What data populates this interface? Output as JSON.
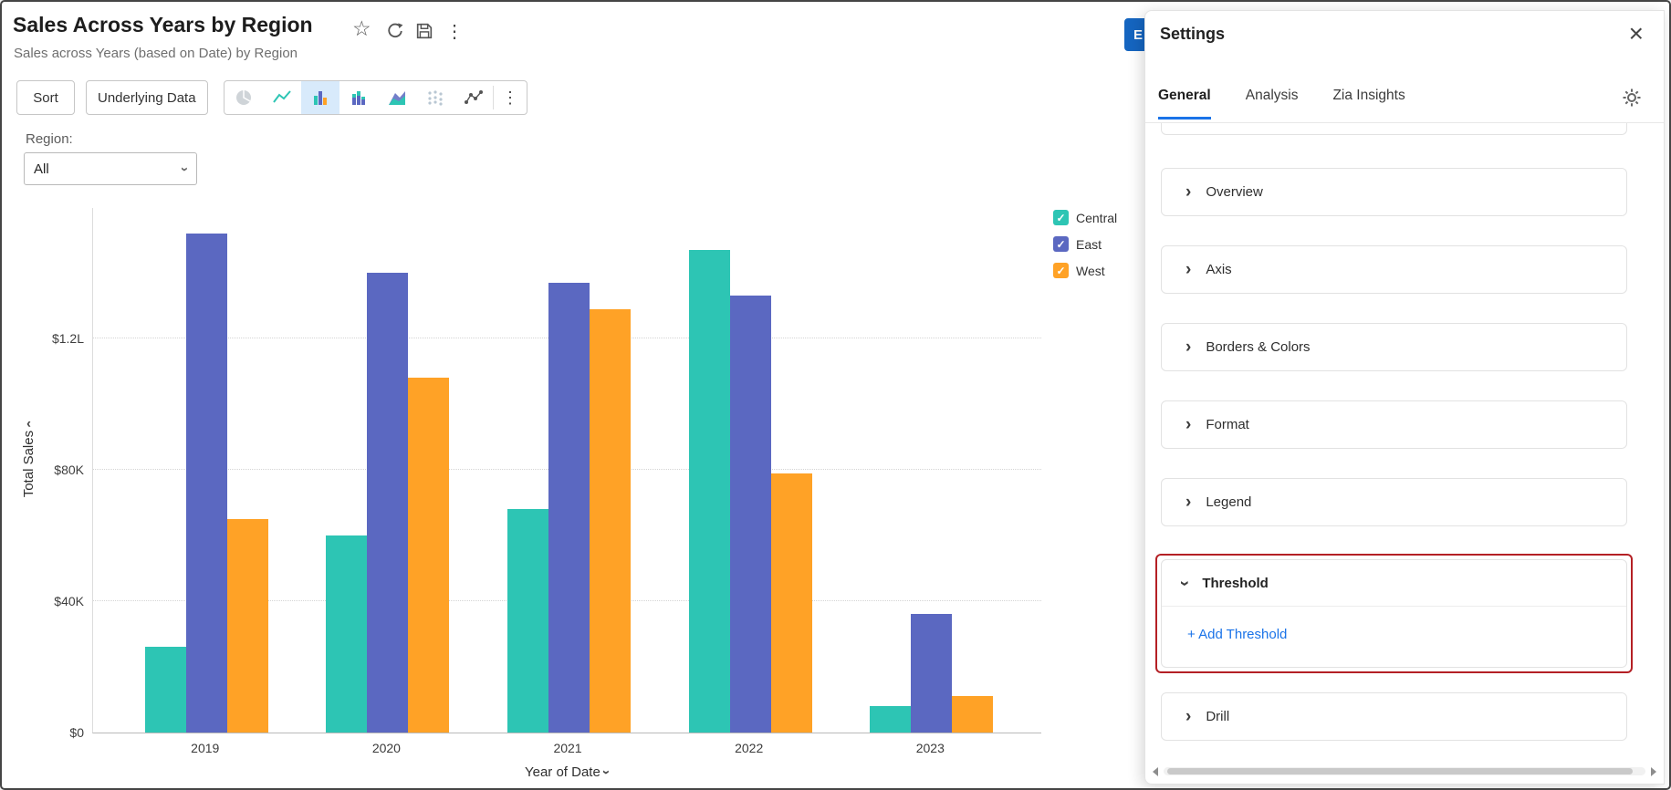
{
  "header": {
    "title": "Sales Across Years by Region",
    "subtitle": "Sales across Years (based on Date) by Region",
    "icons": [
      "star-icon",
      "refresh-icon",
      "save-icon",
      "more-options-icon"
    ]
  },
  "toolbar": {
    "sort_label": "Sort",
    "underlying_data_label": "Underlying Data",
    "chart_type_icons": [
      "pie-chart",
      "line-chart",
      "grouped-bar-chart",
      "stacked-bar-chart",
      "area-chart",
      "scatter-plot",
      "bubble-chart"
    ],
    "selected_chart_type": "grouped-bar-chart"
  },
  "filter": {
    "label": "Region:",
    "value": "All"
  },
  "chart_data": {
    "type": "bar",
    "title": "Sales Across Years by Region",
    "categories": [
      "2019",
      "2020",
      "2021",
      "2022",
      "2023"
    ],
    "series": [
      {
        "name": "Central",
        "color": "#2dc5b4",
        "values": [
          26000,
          60000,
          68000,
          147000,
          8000
        ]
      },
      {
        "name": "East",
        "color": "#5b68c1",
        "values": [
          152000,
          140000,
          137000,
          133000,
          36000
        ]
      },
      {
        "name": "West",
        "color": "#ffa226",
        "values": [
          65000,
          108000,
          129000,
          79000,
          11000
        ]
      }
    ],
    "xlabel": "Year of Date",
    "ylabel": "Total Sales",
    "yticks": [
      "$0",
      "$40K",
      "$80K",
      "$1.2L"
    ],
    "ytick_values": [
      0,
      40000,
      80000,
      120000
    ],
    "ylim": [
      0,
      160000
    ],
    "legend_position": "right",
    "grid": "horizontal-dotted"
  },
  "edit_button": {
    "label": "E"
  },
  "settings_panel": {
    "title": "Settings",
    "tabs": [
      {
        "label": "General",
        "active": true
      },
      {
        "label": "Analysis",
        "active": false
      },
      {
        "label": "Zia Insights",
        "active": false
      }
    ],
    "sections": [
      {
        "label": "Overview",
        "expanded": false
      },
      {
        "label": "Axis",
        "expanded": false
      },
      {
        "label": "Borders & Colors",
        "expanded": false
      },
      {
        "label": "Format",
        "expanded": false
      },
      {
        "label": "Legend",
        "expanded": false
      },
      {
        "label": "Threshold",
        "expanded": true,
        "highlighted": true,
        "action_label": "+ Add Threshold"
      },
      {
        "label": "Drill",
        "expanded": false
      }
    ]
  },
  "colors": {
    "accent_blue": "#1a73e8",
    "highlight_red": "#b42025",
    "edit_button_blue": "#1565c0",
    "selected_icon_bg": "#d8eafb"
  }
}
